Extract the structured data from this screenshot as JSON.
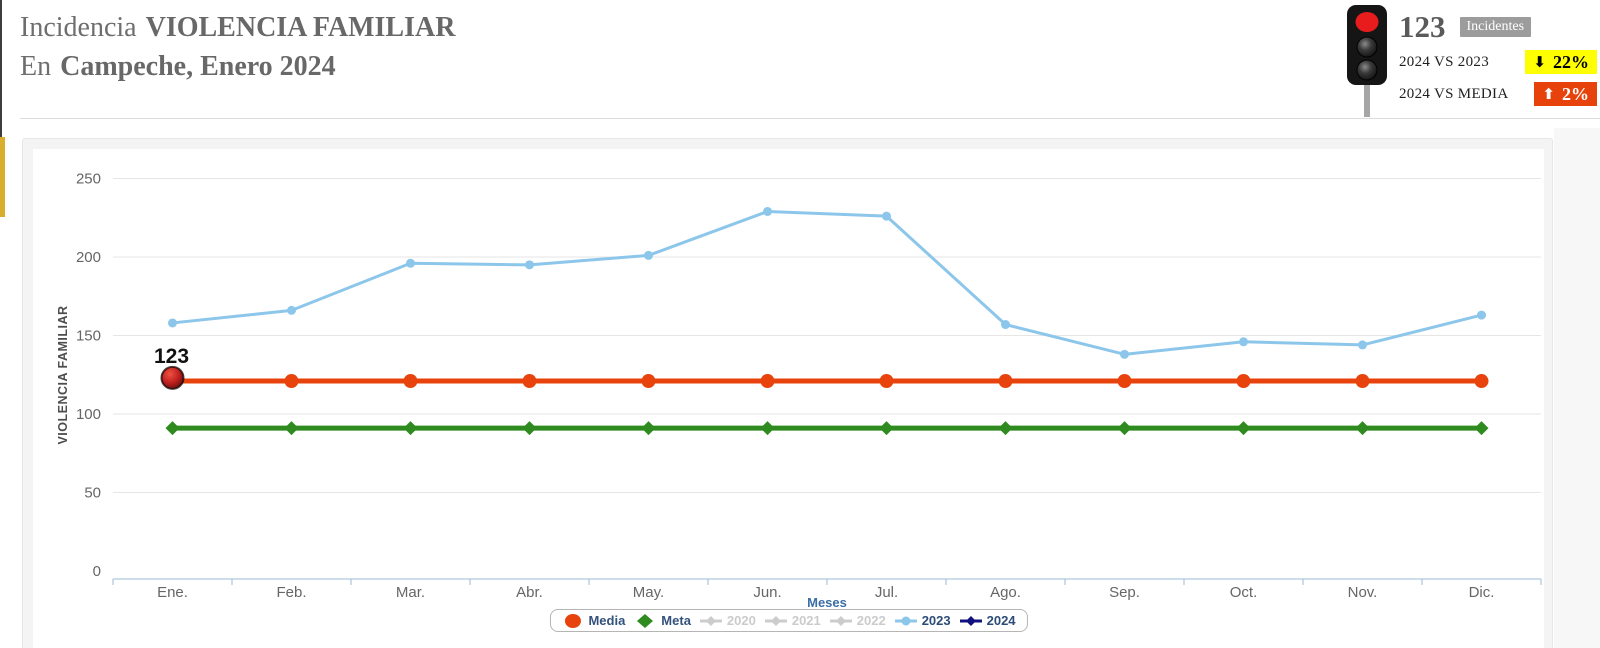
{
  "header": {
    "title_prefix": "Incidencia",
    "title_main": "VIOLENCIA FAMILIAR",
    "subtitle_prefix": "En",
    "subtitle_main": "Campeche, Enero 2024"
  },
  "stats": {
    "value": "123",
    "value_label": "Incidentes",
    "traffic_light": {
      "active": "red",
      "active_color": "#e81c1c"
    },
    "rows": [
      {
        "label": "2024 VS 2023",
        "badge": "22%",
        "direction": "down",
        "badge_bg": "#ffff00",
        "badge_color": "#000000"
      },
      {
        "label": "2024 VS MEDIA",
        "badge": "2%",
        "direction": "up",
        "badge_bg": "#e8420c",
        "badge_color": "#ffffff"
      }
    ]
  },
  "chart_data": {
    "type": "line",
    "categories": [
      "Ene.",
      "Feb.",
      "Mar.",
      "Abr.",
      "May.",
      "Jun.",
      "Jul.",
      "Ago.",
      "Sep.",
      "Oct.",
      "Nov.",
      "Dic."
    ],
    "xlabel": "Meses",
    "ylabel": "VIOLENCIA FAMILIAR",
    "ylim": [
      0,
      250
    ],
    "ytick_step": 50,
    "grid": true,
    "legend_position": "bottom-center",
    "series": [
      {
        "name": "Media",
        "color": "#e8430c",
        "marker": "circle",
        "legend_marker": "circle",
        "line_width": 5,
        "marker_radius": 7,
        "legend_line": false,
        "legend_bold": false,
        "disabled": false,
        "values": [
          121,
          121,
          121,
          121,
          121,
          121,
          121,
          121,
          121,
          121,
          121,
          121
        ]
      },
      {
        "name": "Meta",
        "color": "#2f8b1f",
        "marker": "diamond",
        "legend_marker": "diamond",
        "line_width": 5,
        "marker_radius": 7,
        "legend_line": false,
        "legend_bold": false,
        "disabled": false,
        "values": [
          91,
          91,
          91,
          91,
          91,
          91,
          91,
          91,
          91,
          91,
          91,
          91
        ]
      },
      {
        "name": "2020",
        "color": "#cccccc",
        "legend_marker": "diamond",
        "legend_line": true,
        "legend_bold": false,
        "disabled": true
      },
      {
        "name": "2021",
        "color": "#cccccc",
        "legend_marker": "diamond",
        "legend_line": true,
        "legend_bold": false,
        "disabled": true
      },
      {
        "name": "2022",
        "color": "#cccccc",
        "legend_marker": "diamond",
        "legend_line": true,
        "legend_bold": false,
        "disabled": true
      },
      {
        "name": "2023",
        "color": "#8cc6ea",
        "marker": "circle",
        "legend_marker": "circle",
        "line_width": 3,
        "marker_radius": 4.5,
        "legend_line": true,
        "legend_bold": true,
        "disabled": false,
        "values": [
          158,
          166,
          196,
          195,
          201,
          229,
          226,
          157,
          138,
          146,
          144,
          163
        ]
      },
      {
        "name": "2024",
        "color": "#10107e",
        "marker": "sphere",
        "legend_marker": "diamond",
        "line_width": 3,
        "marker_radius": 11,
        "legend_line": true,
        "legend_bold": true,
        "disabled": false,
        "values": [
          123,
          null,
          null,
          null,
          null,
          null,
          null,
          null,
          null,
          null,
          null,
          null
        ],
        "data_labels": [
          {
            "index": 0,
            "text": "123"
          }
        ],
        "sphere_colors": {
          "center": "#ef5140",
          "mid": "#c02020",
          "edge": "#5f100c"
        }
      }
    ],
    "style": {
      "axis_line": "#bcd2e8",
      "axis_tick": "#9fb8d0",
      "grid_color": "#e6e6e6",
      "tick_label_color": "#666666",
      "xlabel_color": "#3a6ea5",
      "ylabel_color": "#4d4d4d",
      "data_label_color": "#111111",
      "legend_text_color": "#33527b",
      "legend_disabled_color": "#cbcbcb"
    }
  }
}
